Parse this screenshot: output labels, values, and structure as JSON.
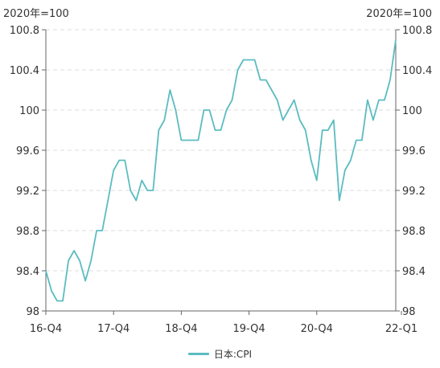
{
  "units": {
    "left": "2020年=100",
    "right": "2020年=100"
  },
  "colors": {
    "series": "#5bbcc0",
    "axis": "#666666",
    "grid": "#dddddd"
  },
  "chart_data": {
    "type": "line",
    "title": "",
    "xlabel": "",
    "ylabel": "2020年=100",
    "ylim": [
      98,
      100.8
    ],
    "yticks": [
      "98",
      "98.4",
      "98.8",
      "99.2",
      "99.6",
      "100",
      "100.4",
      "100.8"
    ],
    "yticks_right": [
      "98",
      "98.4",
      "98.8",
      "99.2",
      "99.6",
      "100",
      "100.4",
      "100.8"
    ],
    "x_tick_labels": [
      {
        "index": 0,
        "label": "16-Q4"
      },
      {
        "index": 12,
        "label": "17-Q4"
      },
      {
        "index": 24,
        "label": "18-Q4"
      },
      {
        "index": 36,
        "label": "19-Q4"
      },
      {
        "index": 48,
        "label": "20-Q4"
      },
      {
        "index": 63,
        "label": "22-Q1"
      }
    ],
    "grid": "horizontal-dashed",
    "legend_position": "bottom",
    "series": [
      {
        "name": "日本:CPI",
        "values": [
          98.4,
          98.2,
          98.1,
          98.1,
          98.5,
          98.6,
          98.5,
          98.3,
          98.5,
          98.8,
          98.8,
          99.1,
          99.4,
          99.5,
          99.5,
          99.2,
          99.1,
          99.3,
          99.2,
          99.2,
          99.8,
          99.9,
          100.2,
          100.0,
          99.7,
          99.7,
          99.7,
          99.7,
          100.0,
          100.0,
          99.8,
          99.8,
          100.0,
          100.1,
          100.4,
          100.5,
          100.5,
          100.5,
          100.3,
          100.3,
          100.2,
          100.1,
          99.9,
          100.0,
          100.1,
          99.9,
          99.8,
          99.5,
          99.3,
          99.8,
          99.8,
          99.9,
          99.1,
          99.4,
          99.5,
          99.7,
          99.7,
          100.1,
          99.9,
          100.1,
          100.1,
          100.3,
          100.7
        ]
      }
    ]
  }
}
